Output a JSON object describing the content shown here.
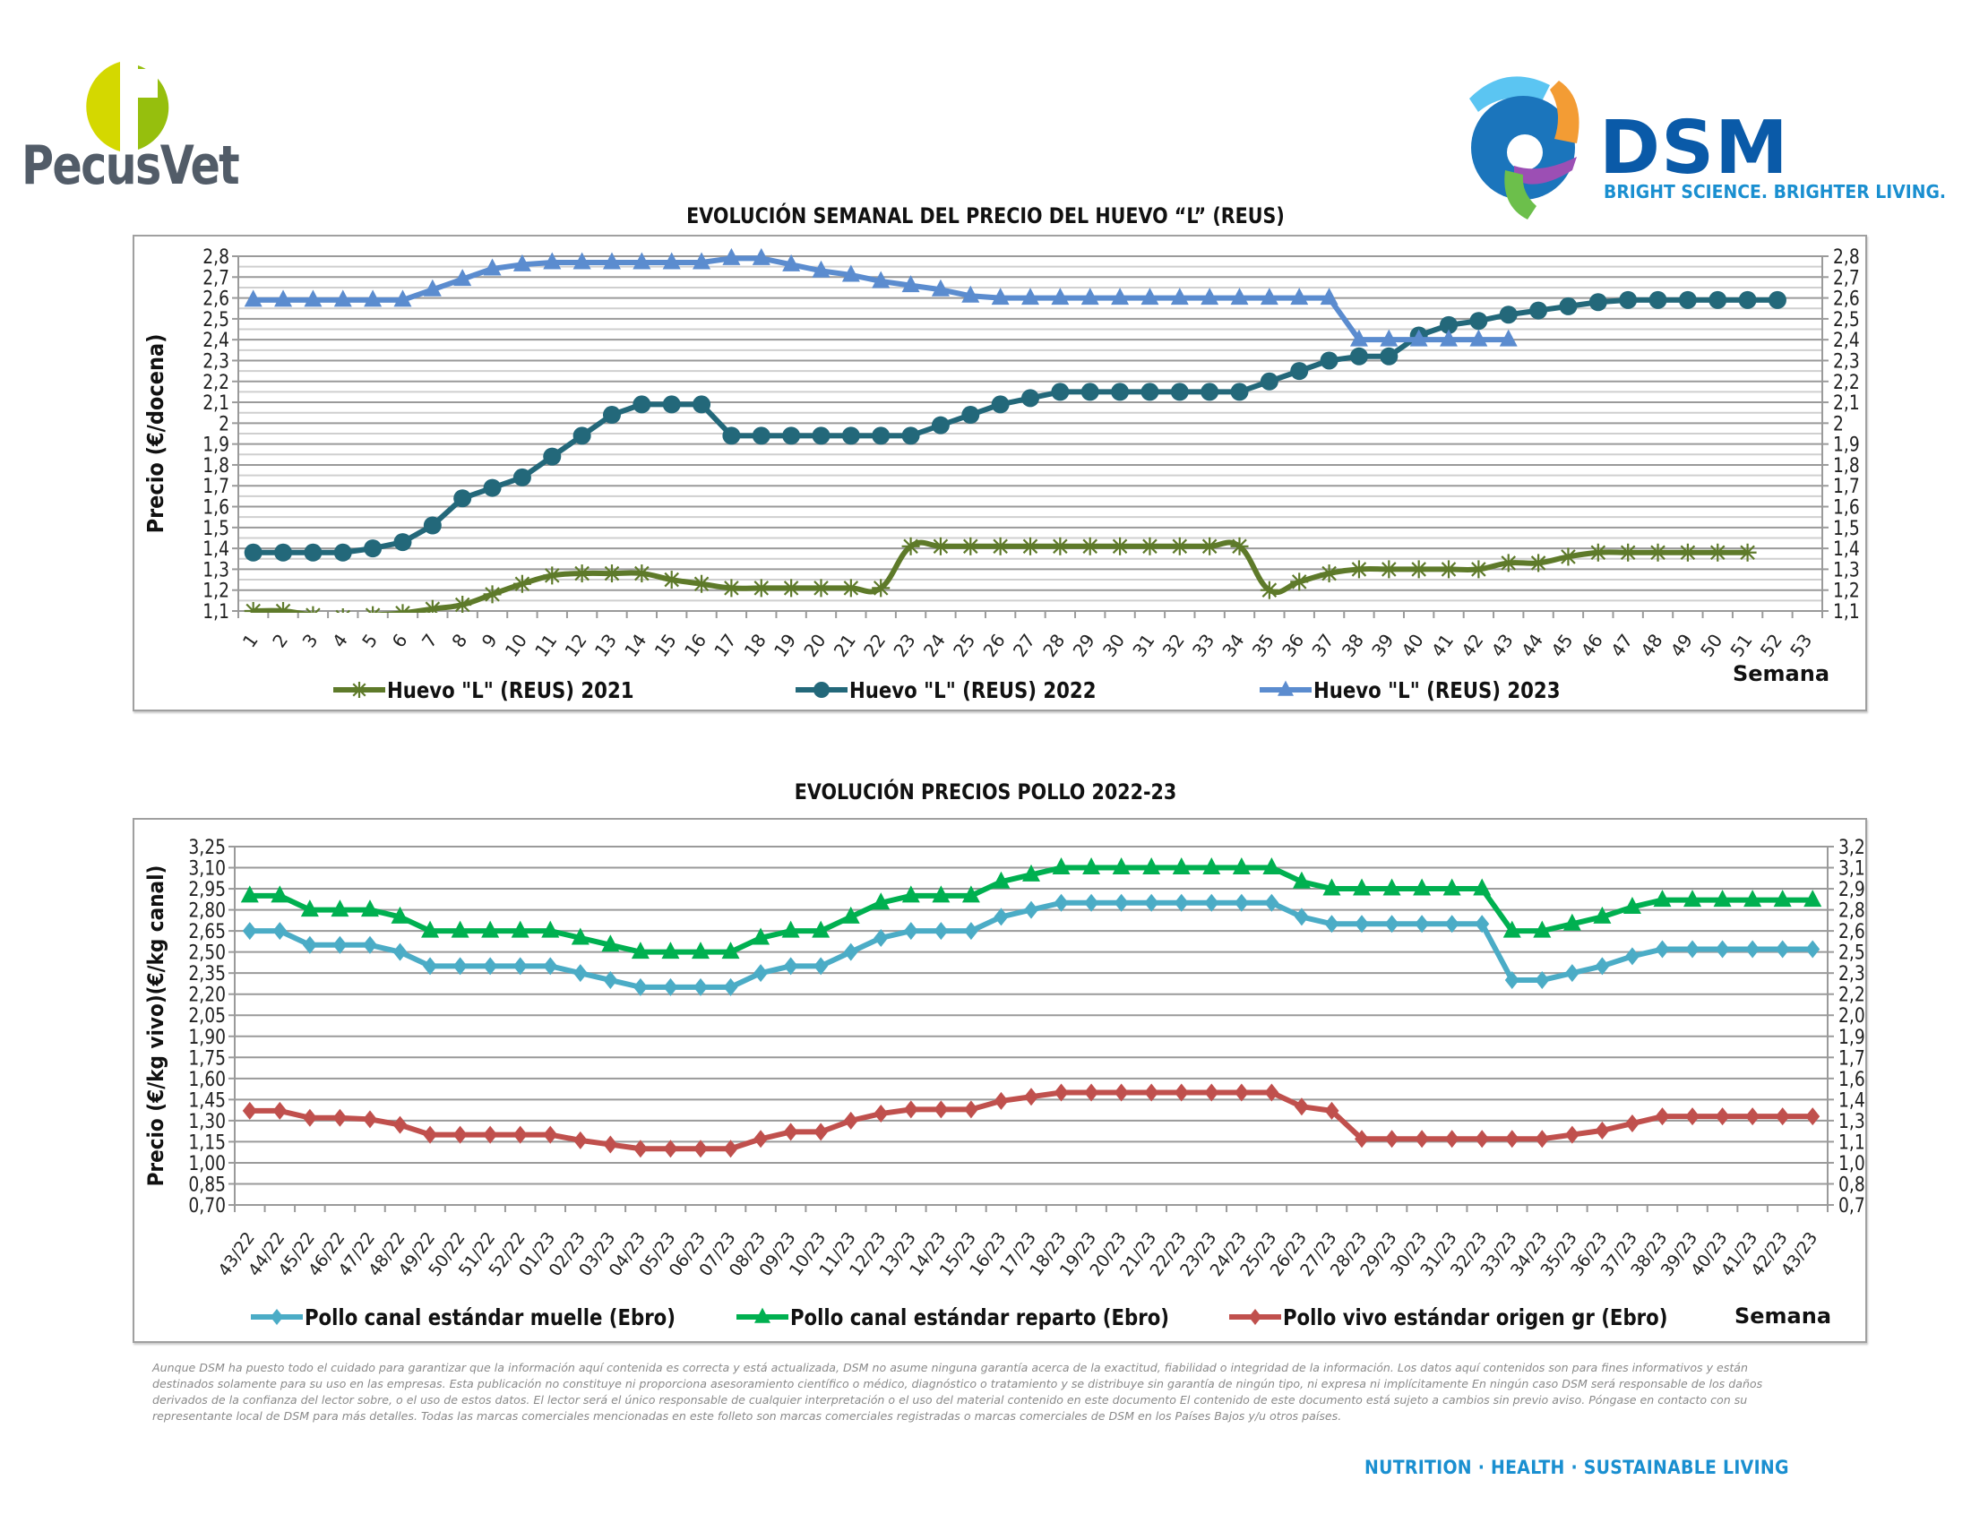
{
  "header": {
    "left_logo": {
      "name": "PecusVet",
      "colors": {
        "light": "#d4d800",
        "dark": "#96bf0d",
        "text": "#525c68"
      }
    },
    "right_logo": {
      "name": "DSM",
      "tagline": "BRIGHT SCIENCE. BRIGHTER LIVING.",
      "colors": {
        "text": "#0a5aa8",
        "tagline": "#1a8fd0"
      }
    }
  },
  "chart_data": [
    {
      "type": "line",
      "title": "EVOLUCIÓN SEMANAL DEL PRECIO DEL HUEVO “L” (REUS)",
      "xlabel": "Semana",
      "ylabel": "Precio (€/docena)",
      "ylim": [
        1.1,
        2.8
      ],
      "yticks": [
        "2,8",
        "2,7",
        "2,6",
        "2,5",
        "2,4",
        "2,3",
        "2,2",
        "2,1",
        "2",
        "1,9",
        "1,8",
        "1,7",
        "1,6",
        "1,5",
        "1,4",
        "1,3",
        "1,2",
        "1,1"
      ],
      "y_secondary_ticks": [
        "2,8",
        "2,7",
        "2,6",
        "2,5",
        "2,4",
        "2,3",
        "2,2",
        "2,1",
        "2",
        "1,9",
        "1,8",
        "1,7",
        "1,6",
        "1,5",
        "1,4",
        "1,3",
        "1,2",
        "1,1"
      ],
      "grid": true,
      "legend_position": "bottom",
      "x": [
        "1",
        "2",
        "3",
        "4",
        "5",
        "6",
        "7",
        "8",
        "9",
        "10",
        "11",
        "12",
        "13",
        "14",
        "15",
        "16",
        "17",
        "18",
        "19",
        "20",
        "21",
        "22",
        "23",
        "24",
        "25",
        "26",
        "27",
        "28",
        "29",
        "30",
        "31",
        "32",
        "33",
        "34",
        "35",
        "36",
        "37",
        "38",
        "39",
        "40",
        "41",
        "42",
        "43",
        "44",
        "45",
        "46",
        "47",
        "48",
        "49",
        "50",
        "51",
        "52",
        "53"
      ],
      "series": [
        {
          "name": "Huevo \"L\" (REUS) 2021",
          "color": "#5e7a2a",
          "marker": "asterisk",
          "smooth": true,
          "values": [
            1.1,
            1.1,
            1.08,
            1.07,
            1.08,
            1.09,
            1.11,
            1.13,
            1.18,
            1.23,
            1.27,
            1.28,
            1.28,
            1.28,
            1.25,
            1.23,
            1.21,
            1.21,
            1.21,
            1.21,
            1.21,
            1.21,
            1.41,
            1.41,
            1.41,
            1.41,
            1.41,
            1.41,
            1.41,
            1.41,
            1.41,
            1.41,
            1.41,
            1.41,
            1.2,
            1.24,
            1.28,
            1.3,
            1.3,
            1.3,
            1.3,
            1.3,
            1.33,
            1.33,
            1.36,
            1.38,
            1.38,
            1.38,
            1.38,
            1.38,
            1.38,
            null,
            null
          ]
        },
        {
          "name": "Huevo \"L\" (REUS) 2022",
          "color": "#23687a",
          "marker": "circle",
          "smooth": false,
          "values": [
            1.38,
            1.38,
            1.38,
            1.38,
            1.4,
            1.43,
            1.51,
            1.64,
            1.69,
            1.74,
            1.84,
            1.94,
            2.04,
            2.09,
            2.09,
            2.09,
            1.94,
            1.94,
            1.94,
            1.94,
            1.94,
            1.94,
            1.94,
            1.99,
            2.04,
            2.09,
            2.12,
            2.15,
            2.15,
            2.15,
            2.15,
            2.15,
            2.15,
            2.15,
            2.2,
            2.25,
            2.3,
            2.32,
            2.32,
            2.42,
            2.47,
            2.49,
            2.52,
            2.54,
            2.56,
            2.58,
            2.59,
            2.59,
            2.59,
            2.59,
            2.59,
            2.59,
            null
          ]
        },
        {
          "name": "Huevo \"L\" (REUS) 2023",
          "color": "#5b8ccf",
          "marker": "triangle",
          "smooth": false,
          "values": [
            2.59,
            2.59,
            2.59,
            2.59,
            2.59,
            2.59,
            2.64,
            2.69,
            2.74,
            2.76,
            2.77,
            2.77,
            2.77,
            2.77,
            2.77,
            2.77,
            2.79,
            2.79,
            2.76,
            2.73,
            2.71,
            2.68,
            2.66,
            2.64,
            2.61,
            2.6,
            2.6,
            2.6,
            2.6,
            2.6,
            2.6,
            2.6,
            2.6,
            2.6,
            2.6,
            2.6,
            2.6,
            2.4,
            2.4,
            2.4,
            2.4,
            2.4,
            2.4,
            null,
            null,
            null,
            null,
            null,
            null,
            null,
            null,
            null,
            null
          ]
        }
      ]
    },
    {
      "type": "line",
      "title": "EVOLUCIÓN PRECIOS POLLO 2022-23",
      "xlabel": "Semana",
      "ylabel": "Precio (€/kg vivo)(€/kg canal)",
      "ylim": [
        0.7,
        3.25
      ],
      "yticks": [
        "3,25",
        "3,10",
        "2,95",
        "2,80",
        "2,65",
        "2,50",
        "2,35",
        "2,20",
        "2,05",
        "1,90",
        "1,75",
        "1,60",
        "1,45",
        "1,30",
        "1,15",
        "1,00",
        "0,85",
        "0,70"
      ],
      "y_secondary_ticks": [
        "3,25",
        "3,10",
        "2,95",
        "2,80",
        "2,65",
        "2,50",
        "2,35",
        "2,20",
        "2,05",
        "1,90",
        "1,75",
        "1,60",
        "1,45",
        "1,30",
        "1,15",
        "1,00",
        "0,85",
        "0,70"
      ],
      "grid": true,
      "legend_position": "bottom",
      "x": [
        "43/22",
        "44/22",
        "45/22",
        "46/22",
        "47/22",
        "48/22",
        "49/22",
        "50/22",
        "51/22",
        "52/22",
        "01/23",
        "02/23",
        "03/23",
        "04/23",
        "05/23",
        "06/23",
        "07/23",
        "08/23",
        "09/23",
        "10/23",
        "11/23",
        "12/23",
        "13/23",
        "14/23",
        "15/23",
        "16/23",
        "17/23",
        "18/23",
        "19/23",
        "20/23",
        "21/23",
        "22/23",
        "23/23",
        "24/23",
        "25/23",
        "26/23",
        "27/23",
        "28/23",
        "29/23",
        "30/23",
        "31/23",
        "32/23",
        "33/23",
        "34/23",
        "35/23",
        "36/23",
        "37/23",
        "38/23",
        "39/23",
        "40/23",
        "41/23",
        "42/23",
        "43/23"
      ],
      "series": [
        {
          "name": "Pollo canal estándar muelle (Ebro)",
          "color": "#4bacc6",
          "marker": "diamond",
          "values": [
            2.65,
            2.65,
            2.55,
            2.55,
            2.55,
            2.5,
            2.4,
            2.4,
            2.4,
            2.4,
            2.4,
            2.35,
            2.3,
            2.25,
            2.25,
            2.25,
            2.25,
            2.35,
            2.4,
            2.4,
            2.5,
            2.6,
            2.65,
            2.65,
            2.65,
            2.75,
            2.8,
            2.85,
            2.85,
            2.85,
            2.85,
            2.85,
            2.85,
            2.85,
            2.85,
            2.75,
            2.7,
            2.7,
            2.7,
            2.7,
            2.7,
            2.7,
            2.3,
            2.3,
            2.35,
            2.4,
            2.47,
            2.52,
            2.52,
            2.52,
            2.52,
            2.52,
            2.52
          ]
        },
        {
          "name": "Pollo canal estándar reparto (Ebro)",
          "color": "#00b050",
          "marker": "triangle",
          "values": [
            2.9,
            2.9,
            2.8,
            2.8,
            2.8,
            2.75,
            2.65,
            2.65,
            2.65,
            2.65,
            2.65,
            2.6,
            2.55,
            2.5,
            2.5,
            2.5,
            2.5,
            2.6,
            2.65,
            2.65,
            2.75,
            2.85,
            2.9,
            2.9,
            2.9,
            3.0,
            3.05,
            3.1,
            3.1,
            3.1,
            3.1,
            3.1,
            3.1,
            3.1,
            3.1,
            3.0,
            2.95,
            2.95,
            2.95,
            2.95,
            2.95,
            2.95,
            2.65,
            2.65,
            2.7,
            2.75,
            2.82,
            2.87,
            2.87,
            2.87,
            2.87,
            2.87,
            2.87
          ]
        },
        {
          "name": "Pollo vivo estándar origen gr (Ebro)",
          "color": "#c0504d",
          "marker": "diamond",
          "values": [
            1.37,
            1.37,
            1.32,
            1.32,
            1.31,
            1.27,
            1.2,
            1.2,
            1.2,
            1.2,
            1.2,
            1.16,
            1.13,
            1.1,
            1.1,
            1.1,
            1.1,
            1.17,
            1.22,
            1.22,
            1.3,
            1.35,
            1.38,
            1.38,
            1.38,
            1.44,
            1.47,
            1.5,
            1.5,
            1.5,
            1.5,
            1.5,
            1.5,
            1.5,
            1.5,
            1.4,
            1.37,
            1.17,
            1.17,
            1.17,
            1.17,
            1.17,
            1.17,
            1.17,
            1.2,
            1.23,
            1.28,
            1.33,
            1.33,
            1.33,
            1.33,
            1.33,
            1.33
          ]
        }
      ]
    }
  ],
  "footer": {
    "disclaimer": "Aunque DSM ha puesto todo el cuidado para garantizar que la información aquí contenida es correcta y está actualizada, DSM no asume ninguna garantía acerca de la exactitud, fiabilidad o integridad de la información. Los datos aquí contenidos son para fines informativos y están destinados solamente para su uso en las empresas. Esta publicación no constituye ni proporciona asesoramiento científico o médico, diagnóstico o tratamiento y se distribuye sin garantía de ningún tipo, ni expresa ni implícitamente En ningún caso DSM será responsable de los daños derivados de la confianza del lector sobre, o el uso de estos datos. El lector será el único responsable de cualquier interpretación o el uso del material contenido en este documento El contenido de este documento está sujeto a cambios sin previo aviso. Póngase en contacto con su representante local de DSM para más detalles. Todas las marcas comerciales mencionadas en este folleto son marcas comerciales registradas o marcas comerciales de DSM en los Países Bajos y/u otros países.",
    "tagline": "NUTRITION · HEALTH · SUSTAINABLE LIVING"
  }
}
